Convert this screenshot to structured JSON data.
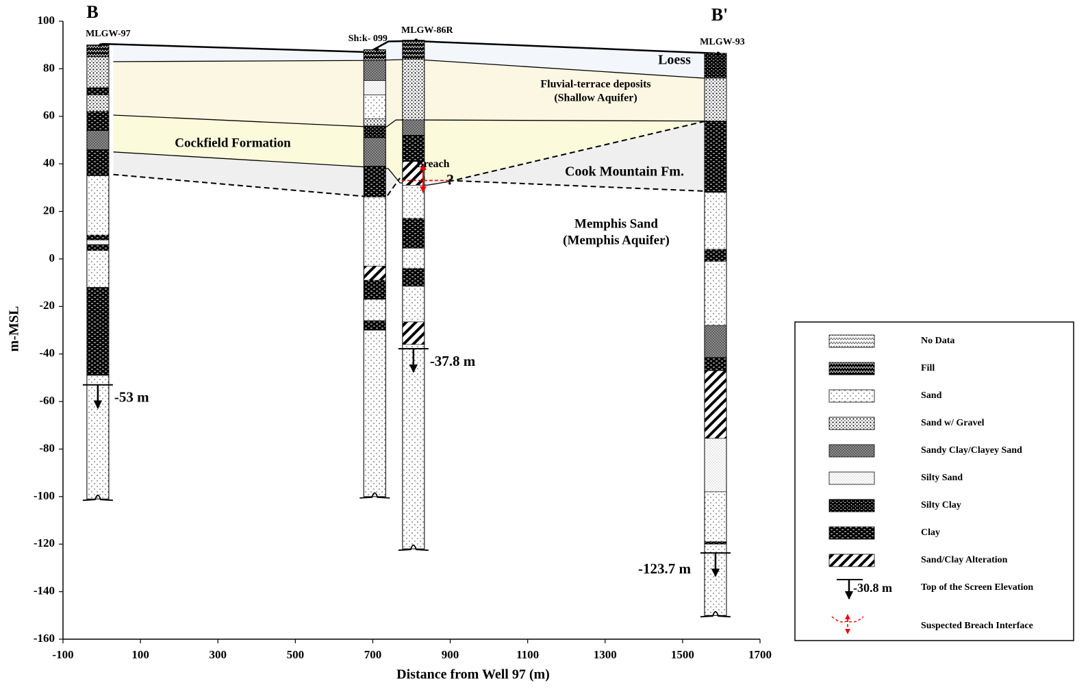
{
  "chart_data": {
    "type": "cross-section",
    "section_labels": [
      "B",
      "B'"
    ],
    "xlabel": "Distance from Well 97 (m)",
    "ylabel": "m-MSL",
    "xlim": [
      -100,
      1700
    ],
    "ylim": [
      -160,
      100
    ],
    "xticks": [
      -100,
      100,
      300,
      500,
      700,
      900,
      1100,
      1300,
      1500,
      1700
    ],
    "yticks": [
      100,
      80,
      60,
      40,
      20,
      0,
      -20,
      -40,
      -60,
      -80,
      -100,
      -120,
      -140,
      -160
    ],
    "formations": [
      {
        "name": [
          "Loess"
        ],
        "color": "#f3f6fb",
        "x": [
          30,
          700,
          740,
          805,
          1560,
          1560,
          805,
          700,
          30
        ],
        "y": [
          90.3,
          87,
          91.5,
          91.7,
          87,
          76,
          84,
          83.5,
          83
        ]
      },
      {
        "name": [
          "Fluvial-terrace deposits",
          "(Shallow Aquifer)"
        ],
        "color": "#fcf7e3",
        "x": [
          30,
          700,
          805,
          1560,
          1560,
          760,
          735,
          700,
          30
        ],
        "y": [
          83,
          83.5,
          84,
          76,
          58,
          58.5,
          55.5,
          55.5,
          60.5
        ]
      },
      {
        "name": [
          "Cockfield Formation"
        ],
        "color": "#fbfadb",
        "x": [
          30,
          700,
          735,
          760,
          1560,
          895,
          840,
          770,
          740,
          700,
          30
        ],
        "y": [
          60.5,
          55.5,
          55.5,
          58.5,
          58,
          32.5,
          31,
          32,
          38,
          38.5,
          45
        ]
      },
      {
        "name": [
          "Cook Mountain Fm."
        ],
        "color": "#efefef",
        "x": [
          30,
          700,
          740,
          770,
          840,
          895,
          1560,
          1560,
          895,
          770,
          735,
          700,
          30
        ],
        "y": [
          45,
          38.5,
          38,
          32,
          31,
          32.5,
          58,
          28.5,
          33,
          34,
          26,
          26,
          35.5
        ]
      },
      {
        "name": [
          "Memphis Sand",
          "(Memphis Aquifer)"
        ]
      }
    ],
    "boundaries": [
      {
        "style": "thick",
        "x": [
          0,
          690,
          740,
          805,
          1585
        ],
        "y": [
          90.5,
          87,
          91.5,
          91.7,
          86.5
        ]
      },
      {
        "style": "solid",
        "x": [
          30,
          700,
          805,
          1560
        ],
        "y": [
          83,
          83.5,
          84,
          76
        ]
      },
      {
        "style": "solid",
        "x": [
          30,
          700,
          735,
          760,
          1560
        ],
        "y": [
          60.5,
          55.5,
          55.5,
          58.5,
          58
        ]
      },
      {
        "style": "solid",
        "x": [
          30,
          700,
          740,
          770,
          840,
          895
        ],
        "y": [
          45,
          38.5,
          38,
          32,
          31,
          32.5
        ]
      },
      {
        "style": "dashed",
        "x": [
          30,
          700,
          735,
          770
        ],
        "y": [
          35.5,
          26,
          26,
          34
        ]
      },
      {
        "style": "dashed",
        "x": [
          895,
          1560
        ],
        "y": [
          32.5,
          58
        ]
      },
      {
        "style": "dashed",
        "x": [
          895,
          1560
        ],
        "y": [
          33,
          28.5
        ]
      }
    ],
    "wells": [
      {
        "name": "MLGW-97",
        "x": -10,
        "screen": -53,
        "screen_label": "-53 m",
        "layers": [
          {
            "lith": "Fill",
            "top": 90,
            "bottom": 85
          },
          {
            "lith": "Sand w/ Gravel",
            "top": 85,
            "bottom": 72
          },
          {
            "lith": "Clay",
            "top": 72,
            "bottom": 69
          },
          {
            "lith": "Sand w/ Gravel",
            "top": 69,
            "bottom": 62
          },
          {
            "lith": "Clay",
            "top": 62,
            "bottom": 54
          },
          {
            "lith": "Sandy Clay/Clayey Sand",
            "top": 54,
            "bottom": 46
          },
          {
            "lith": "Clay",
            "top": 46,
            "bottom": 35
          },
          {
            "lith": "Sand",
            "top": 35,
            "bottom": 10
          },
          {
            "lith": "Clay",
            "top": 10,
            "bottom": 8
          },
          {
            "lith": "Silty Sand",
            "top": 8,
            "bottom": 6
          },
          {
            "lith": "Clay",
            "top": 6,
            "bottom": 3.5
          },
          {
            "lith": "Sand",
            "top": 3.5,
            "bottom": -12
          },
          {
            "lith": "Clay",
            "top": -12,
            "bottom": -49
          },
          {
            "lith": "Sand",
            "top": -49,
            "bottom": -101
          }
        ]
      },
      {
        "name": "Sh:k- 099",
        "x": 705,
        "layers": [
          {
            "lith": "Fill",
            "top": 88,
            "bottom": 83.5
          },
          {
            "lith": "Sandy Clay/Clayey Sand",
            "top": 83.5,
            "bottom": 75
          },
          {
            "lith": "Silty Sand",
            "top": 75,
            "bottom": 69
          },
          {
            "lith": "Sand",
            "top": 69,
            "bottom": 59
          },
          {
            "lith": "Sand w/ Gravel",
            "top": 59,
            "bottom": 56
          },
          {
            "lith": "Silty Clay",
            "top": 56,
            "bottom": 51
          },
          {
            "lith": "Sandy Clay/Clayey Sand",
            "top": 51,
            "bottom": 39
          },
          {
            "lith": "Clay",
            "top": 39,
            "bottom": 26
          },
          {
            "lith": "Sand",
            "top": 26,
            "bottom": -3
          },
          {
            "lith": "Sand/Clay Alteration",
            "top": -3,
            "bottom": -9
          },
          {
            "lith": "Clay",
            "top": -9,
            "bottom": -17
          },
          {
            "lith": "Sand",
            "top": -17,
            "bottom": -26
          },
          {
            "lith": "Clay",
            "top": -26,
            "bottom": -30
          },
          {
            "lith": "Sand",
            "top": -30,
            "bottom": -100
          }
        ]
      },
      {
        "name": "MLGW-86R",
        "x": 805,
        "screen": -37.8,
        "screen_label": "-37.8 m",
        "layers": [
          {
            "lith": "Fill",
            "top": 92,
            "bottom": 84
          },
          {
            "lith": "Sand w/ Gravel",
            "top": 84,
            "bottom": 58.5
          },
          {
            "lith": "Sandy Clay/Clayey Sand",
            "top": 58.5,
            "bottom": 52
          },
          {
            "lith": "Clay",
            "top": 52,
            "bottom": 41
          },
          {
            "lith": "Sand/Clay Alteration",
            "top": 41,
            "bottom": 31
          },
          {
            "lith": "Sand",
            "top": 31,
            "bottom": 17
          },
          {
            "lith": "Clay",
            "top": 17,
            "bottom": 4.5
          },
          {
            "lith": "Sand",
            "top": 4.5,
            "bottom": -4
          },
          {
            "lith": "Clay",
            "top": -4,
            "bottom": -11.5
          },
          {
            "lith": "Sand",
            "top": -11.5,
            "bottom": -26.5
          },
          {
            "lith": "Sand/Clay Alteration",
            "top": -26.5,
            "bottom": -36
          },
          {
            "lith": "Sand",
            "top": -36,
            "bottom": -122
          }
        ]
      },
      {
        "name": "MLGW-93",
        "x": 1585,
        "screen": -123.7,
        "screen_label": "-123.7 m",
        "layers": [
          {
            "lith": "Silty Clay",
            "top": 86.5,
            "bottom": 76
          },
          {
            "lith": "Sand w/ Gravel",
            "top": 76,
            "bottom": 58
          },
          {
            "lith": "Clay",
            "top": 58,
            "bottom": 28
          },
          {
            "lith": "Sand",
            "top": 28,
            "bottom": 4
          },
          {
            "lith": "Clay",
            "top": 4,
            "bottom": -1
          },
          {
            "lith": "Sand",
            "top": -1,
            "bottom": -28
          },
          {
            "lith": "Sandy Clay/Clayey Sand",
            "top": -28,
            "bottom": -41.5
          },
          {
            "lith": "Clay",
            "top": -41.5,
            "bottom": -47
          },
          {
            "lith": "Sand/Clay Alteration",
            "top": -47,
            "bottom": -75.5
          },
          {
            "lith": "Silty Sand",
            "top": -75.5,
            "bottom": -98
          },
          {
            "lith": "Sand",
            "top": -98,
            "bottom": -119
          },
          {
            "lith": "Clay",
            "top": -119,
            "bottom": -120
          },
          {
            "lith": "Sand",
            "top": -120,
            "bottom": -150
          }
        ]
      }
    ],
    "breach": {
      "label": "Breach",
      "x": 830,
      "y": [
        40,
        28
      ],
      "line_x": [
        775,
        900
      ],
      "line_y": 33,
      "question": "?"
    },
    "legend": {
      "items": [
        {
          "label": "No Data"
        },
        {
          "label": "Fill"
        },
        {
          "label": "Sand"
        },
        {
          "label": "Sand w/ Gravel"
        },
        {
          "label": "Sandy Clay/Clayey Sand"
        },
        {
          "label": "Silty Sand"
        },
        {
          "label": "Silty Clay"
        },
        {
          "label": "Clay"
        },
        {
          "label": "Sand/Clay Alteration"
        },
        {
          "label": "Top of the Screen Elevation",
          "sample": "-30.8 m"
        },
        {
          "label": "Suspected Breach Interface"
        }
      ]
    }
  }
}
